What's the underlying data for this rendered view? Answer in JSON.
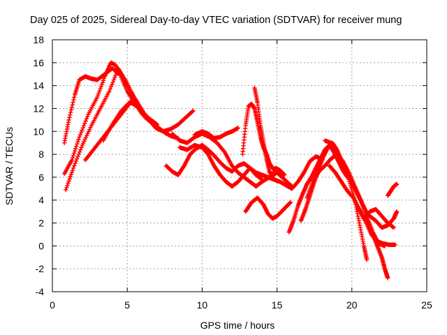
{
  "chart_data": {
    "type": "scatter",
    "title": "Day 025 of 2025, Sidereal Day-to-day VTEC variation (SDTVAR) for receiver mung",
    "xlabel": "GPS time / hours",
    "ylabel": "SDTVAR / TECUs",
    "xlim": [
      0,
      25
    ],
    "ylim": [
      -4,
      18
    ],
    "x_ticks": [
      "0",
      "5",
      "10",
      "15",
      "20",
      "25"
    ],
    "y_ticks": [
      "-4",
      "-2",
      "0",
      "2",
      "4",
      "6",
      "8",
      "10",
      "12",
      "14",
      "16",
      "18"
    ],
    "grid": true,
    "marker": "+",
    "marker_color": "#ff0000",
    "series": [
      {
        "x": [
          0.8,
          1.1,
          1.5,
          1.8,
          2.2,
          2.6,
          3.0,
          3.5,
          4.0,
          4.5,
          5.0,
          5.5,
          6.0,
          6.5
        ],
        "y": [
          9.0,
          11.0,
          13.2,
          14.5,
          14.8,
          14.6,
          14.5,
          15.0,
          15.5,
          15.0,
          13.5,
          12.5,
          11.5,
          11.0
        ]
      },
      {
        "x": [
          0.8,
          1.3,
          1.8,
          2.4,
          3.0,
          3.5,
          3.9,
          4.2,
          4.6,
          5.1,
          5.7,
          6.3,
          6.9,
          7.4,
          7.9,
          8.4,
          8.9,
          9.4
        ],
        "y": [
          6.3,
          7.5,
          9.5,
          11.5,
          13.0,
          14.8,
          16.0,
          15.8,
          15.0,
          13.8,
          12.5,
          11.2,
          10.3,
          10.0,
          10.2,
          10.6,
          11.2,
          11.8
        ]
      },
      {
        "x": [
          0.9,
          1.4,
          2.0,
          2.6,
          3.2,
          3.8,
          4.4,
          5.0,
          5.6,
          6.2,
          6.8,
          7.4,
          7.9,
          8.4
        ],
        "y": [
          4.9,
          6.8,
          8.8,
          10.5,
          12.0,
          13.5,
          15.5,
          14.2,
          12.5,
          11.2,
          10.6,
          10.0,
          9.6,
          9.4
        ]
      },
      {
        "x": [
          2.2,
          2.8,
          3.4,
          4.0,
          4.6,
          5.2,
          5.8,
          6.4,
          7.0,
          7.6
        ],
        "y": [
          7.5,
          8.5,
          9.5,
          10.5,
          11.5,
          12.5,
          12.2,
          11.0,
          10.4,
          9.8
        ]
      },
      {
        "x": [
          3.4,
          4.0,
          4.6,
          5.2,
          5.8,
          6.4,
          7.0
        ],
        "y": [
          9.2,
          10.6,
          11.8,
          12.6,
          12.0,
          11.2,
          10.6
        ]
      },
      {
        "x": [
          7.6,
          8.0,
          8.4,
          8.8,
          9.2,
          9.6,
          10.0,
          10.4,
          10.8,
          11.2,
          11.6,
          12.0,
          12.4,
          12.8,
          13.2,
          13.6,
          14.0,
          14.4,
          14.8,
          15.2,
          15.6,
          16.0,
          16.4,
          16.8,
          17.2,
          17.6,
          18.0
        ],
        "y": [
          7.0,
          6.5,
          6.2,
          7.0,
          8.0,
          8.5,
          8.8,
          8.4,
          7.9,
          7.3,
          6.8,
          6.5,
          7.0,
          7.2,
          6.8,
          6.4,
          6.2,
          6.0,
          5.8,
          5.6,
          5.3,
          5.0,
          5.6,
          6.4,
          7.4,
          7.8,
          7.6
        ]
      },
      {
        "x": [
          8.0,
          8.5,
          9.0,
          9.5,
          10.0,
          10.5,
          11.0,
          11.5,
          12.0,
          12.4,
          12.8,
          13.2,
          13.6,
          14.0,
          14.5,
          15.0,
          15.5,
          16.0
        ],
        "y": [
          9.8,
          9.2,
          9.0,
          9.5,
          9.8,
          9.5,
          9.0,
          8.2,
          7.0,
          6.4,
          6.0,
          5.6,
          5.2,
          5.6,
          6.0,
          6.4,
          5.8,
          5.2
        ]
      },
      {
        "x": [
          9.5,
          10.0,
          10.4,
          10.8,
          11.2,
          11.6,
          12.0,
          12.4
        ],
        "y": [
          9.7,
          10.0,
          9.8,
          9.4,
          9.5,
          9.8,
          10.0,
          10.3
        ]
      },
      {
        "x": [
          8.5,
          9.0,
          9.5,
          10.0,
          10.4,
          10.8,
          11.2,
          11.6,
          12.0,
          12.4,
          12.8,
          13.2,
          13.6,
          14.0
        ],
        "y": [
          8.6,
          8.4,
          8.8,
          8.6,
          8.0,
          7.0,
          6.2,
          5.6,
          5.2,
          5.6,
          6.2,
          6.8,
          6.2,
          5.8
        ]
      },
      {
        "x": [
          12.7,
          12.9,
          13.1,
          13.3,
          13.5,
          13.7,
          13.9,
          14.1,
          14.3,
          14.5,
          14.7,
          15.0,
          15.3
        ],
        "y": [
          8.0,
          10.5,
          12.2,
          12.4,
          12.0,
          10.8,
          9.5,
          8.6,
          8.0,
          7.2,
          6.8,
          6.6,
          6.4
        ]
      },
      {
        "x": [
          13.5,
          13.7,
          13.9,
          14.1,
          14.3,
          14.5,
          14.7,
          14.9,
          15.2,
          15.5
        ],
        "y": [
          13.8,
          12.5,
          10.5,
          9.0,
          7.6,
          6.5,
          6.0,
          6.8,
          6.6,
          6.2
        ]
      },
      {
        "x": [
          12.9,
          13.3,
          13.7,
          14.1,
          14.4,
          14.7,
          15.0,
          15.3,
          15.6,
          15.9
        ],
        "y": [
          3.0,
          3.8,
          4.2,
          3.6,
          2.8,
          2.4,
          2.6,
          3.0,
          3.4,
          3.8
        ]
      },
      {
        "x": [
          15.8,
          16.1,
          16.4,
          16.7,
          17.0,
          17.3,
          17.6,
          17.9,
          18.2,
          18.5,
          18.8,
          19.1,
          19.4,
          19.7
        ],
        "y": [
          1.2,
          2.2,
          3.5,
          4.5,
          5.4,
          6.0,
          6.8,
          7.6,
          8.4,
          8.8,
          8.2,
          7.4,
          6.6,
          6.0
        ]
      },
      {
        "x": [
          16.6,
          16.9,
          17.2,
          17.5,
          17.8,
          18.1,
          18.4,
          18.7,
          19.0,
          19.3,
          19.6,
          19.9,
          20.2,
          20.5,
          20.8,
          21.1
        ],
        "y": [
          2.2,
          3.2,
          4.4,
          5.6,
          6.8,
          7.8,
          8.6,
          9.0,
          8.4,
          7.5,
          6.5,
          5.8,
          5.0,
          4.2,
          3.4,
          2.6
        ]
      },
      {
        "x": [
          17.0,
          17.4,
          17.8,
          18.2,
          18.6,
          19.0,
          19.4,
          19.8,
          20.2,
          20.6,
          21.0,
          21.4,
          21.8,
          22.2
        ],
        "y": [
          4.2,
          5.6,
          6.5,
          7.0,
          7.6,
          8.0,
          7.4,
          6.4,
          5.2,
          4.0,
          2.5,
          1.2,
          0.2,
          0.0
        ]
      },
      {
        "x": [
          18.5,
          18.9,
          19.3,
          19.7,
          20.1,
          20.5,
          20.9,
          21.3,
          21.7,
          22.1,
          22.5,
          22.9
        ],
        "y": [
          7.0,
          6.4,
          5.6,
          4.8,
          4.2,
          3.2,
          2.2,
          1.0,
          0.4,
          0.2,
          0.1,
          0.1
        ]
      },
      {
        "x": [
          18.2,
          18.6,
          19.0,
          19.4,
          19.8,
          20.2,
          20.5,
          20.8,
          21.0
        ],
        "y": [
          9.2,
          9.0,
          8.2,
          7.0,
          5.8,
          4.0,
          2.0,
          0.0,
          -1.2
        ]
      },
      {
        "x": [
          20.5,
          20.8,
          21.1,
          21.4,
          21.7,
          22.0,
          22.2,
          22.4
        ],
        "y": [
          3.2,
          2.4,
          2.0,
          1.0,
          0.0,
          -1.0,
          -2.0,
          -2.8
        ]
      },
      {
        "x": [
          20.8,
          21.2,
          21.6,
          22.0,
          22.4,
          22.8
        ],
        "y": [
          2.4,
          3.0,
          3.2,
          2.6,
          2.0,
          1.6
        ]
      },
      {
        "x": [
          21.2,
          21.6,
          22.0,
          22.4,
          22.8,
          23.0
        ],
        "y": [
          2.6,
          2.2,
          1.6,
          1.8,
          2.4,
          3.0
        ]
      },
      {
        "x": [
          22.4,
          22.6,
          22.8,
          23.0
        ],
        "y": [
          4.4,
          4.8,
          5.2,
          5.4
        ]
      }
    ]
  }
}
